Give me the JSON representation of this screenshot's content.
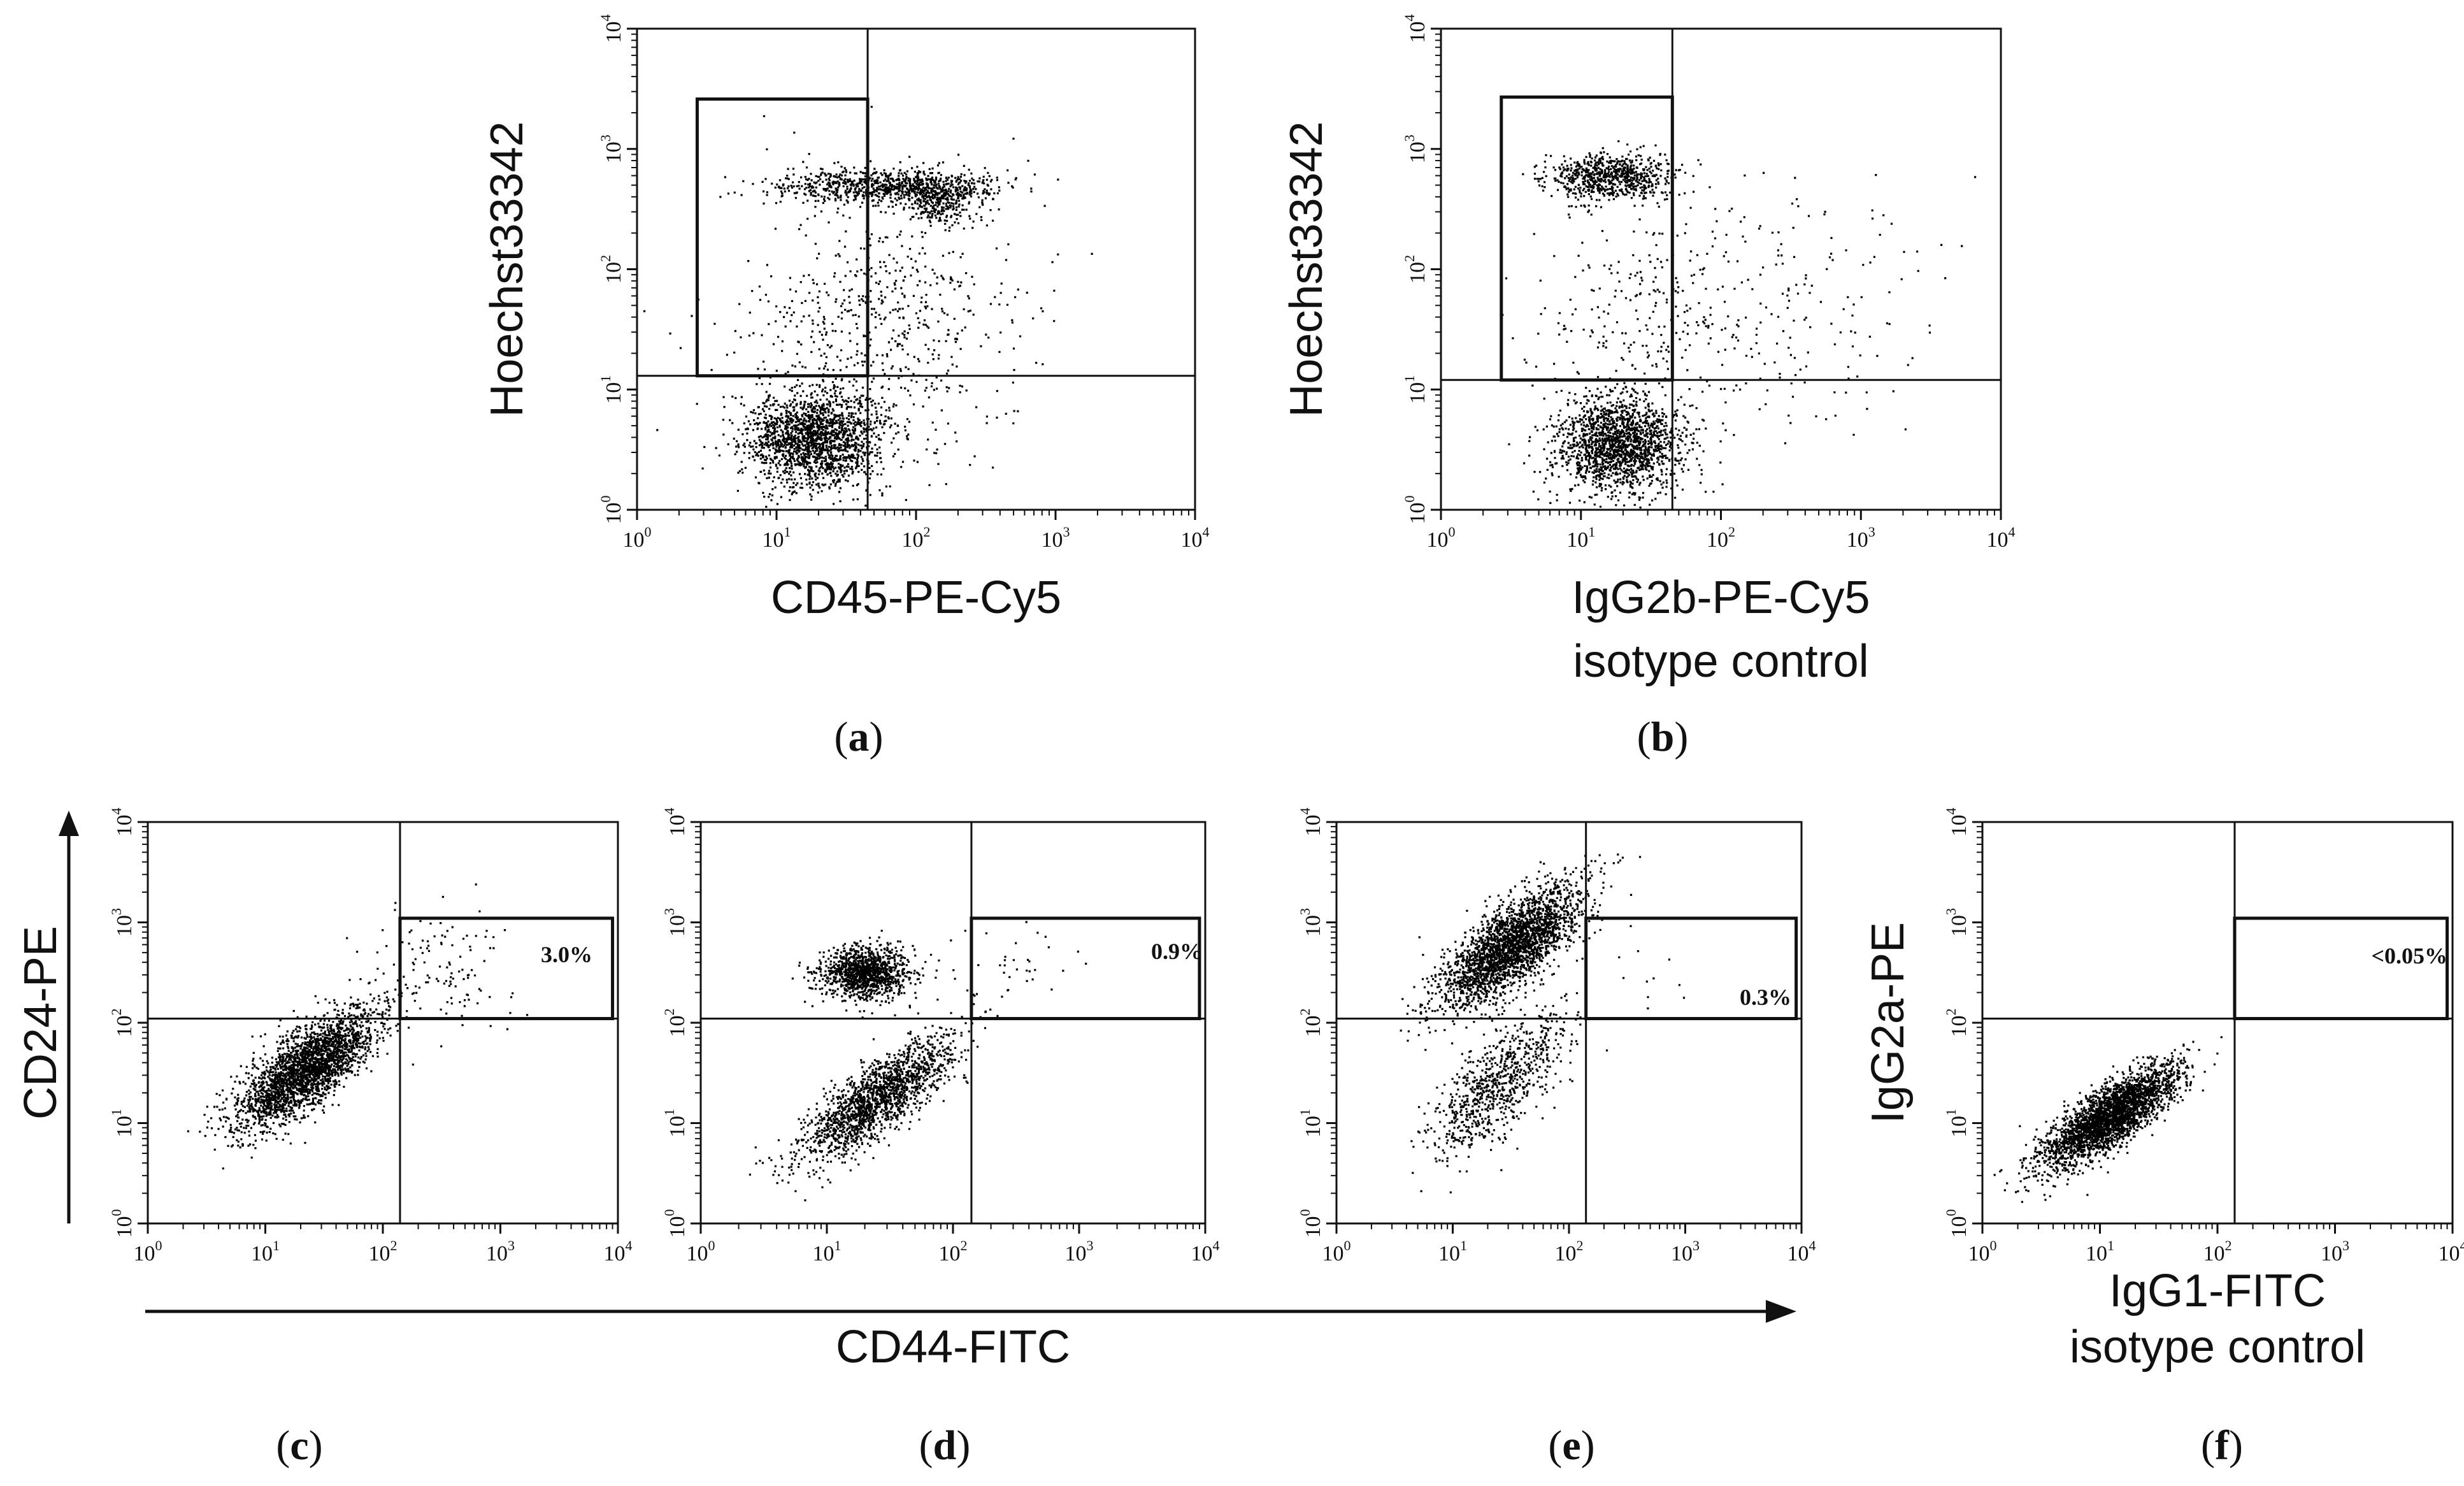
{
  "chart_data": [
    {
      "id": "a",
      "type": "scatter",
      "panel_label": "a",
      "xlabel": "CD45-PE-Cy5",
      "xlabel_line2": "",
      "ylabel": "Hoechst33342",
      "xscale": "log",
      "yscale": "log",
      "xlim": [
        1,
        10000
      ],
      "ylim": [
        1,
        10000
      ],
      "x_ticks": [
        {
          "base": "10",
          "exp": "0"
        },
        {
          "base": "10",
          "exp": "1"
        },
        {
          "base": "10",
          "exp": "2"
        },
        {
          "base": "10",
          "exp": "3"
        },
        {
          "base": "10",
          "exp": "4"
        }
      ],
      "y_ticks": [
        {
          "base": "10",
          "exp": "0"
        },
        {
          "base": "10",
          "exp": "1"
        },
        {
          "base": "10",
          "exp": "2"
        },
        {
          "base": "10",
          "exp": "3"
        },
        {
          "base": "10",
          "exp": "4"
        }
      ],
      "quadrant_divider": {
        "x": 45,
        "y": 13
      },
      "gate": {
        "x": [
          2.7,
          45
        ],
        "y": [
          13,
          2600
        ]
      },
      "gate_label": "",
      "color": "#000000",
      "seed": 11,
      "clusters": [
        {
          "cx": 18,
          "cy": 4,
          "sx": 0.24,
          "sy": 0.2,
          "n": 1800
        },
        {
          "cx": 60,
          "cy": 500,
          "sx": 0.4,
          "sy": 0.07,
          "n": 850
        },
        {
          "cx": 150,
          "cy": 360,
          "sx": 0.13,
          "sy": 0.09,
          "n": 300
        },
        {
          "cx": 55,
          "cy": 35,
          "sx": 0.5,
          "sy": 0.55,
          "n": 650
        }
      ]
    },
    {
      "id": "b",
      "type": "scatter",
      "panel_label": "b",
      "xlabel": "IgG2b-PE-Cy5",
      "xlabel_line2": "isotype control",
      "ylabel": "Hoechst33342",
      "xscale": "log",
      "yscale": "log",
      "xlim": [
        1,
        10000
      ],
      "ylim": [
        1,
        10000
      ],
      "x_ticks": [
        {
          "base": "10",
          "exp": "0"
        },
        {
          "base": "10",
          "exp": "1"
        },
        {
          "base": "10",
          "exp": "2"
        },
        {
          "base": "10",
          "exp": "3"
        },
        {
          "base": "10",
          "exp": "4"
        }
      ],
      "y_ticks": [
        {
          "base": "10",
          "exp": "0"
        },
        {
          "base": "10",
          "exp": "1"
        },
        {
          "base": "10",
          "exp": "2"
        },
        {
          "base": "10",
          "exp": "3"
        },
        {
          "base": "10",
          "exp": "4"
        }
      ],
      "quadrant_divider": {
        "x": 45,
        "y": 12
      },
      "gate": {
        "x": [
          2.7,
          45
        ],
        "y": [
          12,
          2700
        ]
      },
      "gate_label": "",
      "color": "#000000",
      "seed": 23,
      "clusters": [
        {
          "cx": 18,
          "cy": 3.5,
          "sx": 0.22,
          "sy": 0.2,
          "n": 1700
        },
        {
          "cx": 16,
          "cy": 600,
          "sx": 0.22,
          "sy": 0.09,
          "n": 750
        },
        {
          "cx": 30,
          "cy": 40,
          "sx": 0.4,
          "sy": 0.5,
          "n": 250
        },
        {
          "cx": 250,
          "cy": 50,
          "sx": 0.6,
          "sy": 0.55,
          "n": 200
        }
      ]
    },
    {
      "id": "c",
      "type": "scatter",
      "panel_label": "c",
      "xlabel": "",
      "xlabel_line2": "",
      "ylabel": "CD24-PE",
      "xscale": "log",
      "yscale": "log",
      "xlim": [
        1,
        10000
      ],
      "ylim": [
        1,
        10000
      ],
      "x_ticks": [
        {
          "base": "10",
          "exp": "0"
        },
        {
          "base": "10",
          "exp": "1"
        },
        {
          "base": "10",
          "exp": "2"
        },
        {
          "base": "10",
          "exp": "3"
        },
        {
          "base": "10",
          "exp": "4"
        }
      ],
      "y_ticks": [
        {
          "base": "10",
          "exp": "0"
        },
        {
          "base": "10",
          "exp": "1"
        },
        {
          "base": "10",
          "exp": "2"
        },
        {
          "base": "10",
          "exp": "3"
        },
        {
          "base": "10",
          "exp": "4"
        }
      ],
      "quadrant_divider": {
        "x": 140,
        "y": 110
      },
      "gate": {
        "x": [
          140,
          9000
        ],
        "y": [
          110,
          1100
        ]
      },
      "gate_label": "3.0%",
      "color": "#000000",
      "seed": 37,
      "clusters": [
        {
          "cx": 22,
          "cy": 35,
          "sx": 0.3,
          "sy": 0.3,
          "rho": 0.75,
          "n": 2600
        },
        {
          "cx": 300,
          "cy": 350,
          "sx": 0.3,
          "sy": 0.3,
          "n": 120
        }
      ]
    },
    {
      "id": "d",
      "type": "scatter",
      "panel_label": "d",
      "xlabel": "",
      "xlabel_line2": "",
      "ylabel": "",
      "xscale": "log",
      "yscale": "log",
      "xlim": [
        1,
        10000
      ],
      "ylim": [
        1,
        10000
      ],
      "x_ticks": [
        {
          "base": "10",
          "exp": "0"
        },
        {
          "base": "10",
          "exp": "1"
        },
        {
          "base": "10",
          "exp": "2"
        },
        {
          "base": "10",
          "exp": "3"
        },
        {
          "base": "10",
          "exp": "4"
        }
      ],
      "y_ticks": [
        {
          "base": "10",
          "exp": "0"
        },
        {
          "base": "10",
          "exp": "1"
        },
        {
          "base": "10",
          "exp": "2"
        },
        {
          "base": "10",
          "exp": "3"
        },
        {
          "base": "10",
          "exp": "4"
        }
      ],
      "quadrant_divider": {
        "x": 140,
        "y": 110
      },
      "gate": {
        "x": [
          140,
          9000
        ],
        "y": [
          110,
          1100
        ]
      },
      "gate_label": "0.9%",
      "color": "#000000",
      "seed": 53,
      "clusters": [
        {
          "cx": 20,
          "cy": 320,
          "sx": 0.17,
          "sy": 0.13,
          "n": 1200
        },
        {
          "cx": 25,
          "cy": 18,
          "sx": 0.3,
          "sy": 0.3,
          "rho": 0.8,
          "n": 1700
        },
        {
          "cx": 300,
          "cy": 300,
          "sx": 0.3,
          "sy": 0.25,
          "n": 40
        }
      ]
    },
    {
      "id": "e",
      "type": "scatter",
      "panel_label": "e",
      "xlabel": "",
      "xlabel_line2": "",
      "ylabel": "",
      "xscale": "log",
      "yscale": "log",
      "xlim": [
        1,
        10000
      ],
      "ylim": [
        1,
        10000
      ],
      "x_ticks": [
        {
          "base": "10",
          "exp": "0"
        },
        {
          "base": "10",
          "exp": "1"
        },
        {
          "base": "10",
          "exp": "2"
        },
        {
          "base": "10",
          "exp": "3"
        },
        {
          "base": "10",
          "exp": "4"
        }
      ],
      "y_ticks": [
        {
          "base": "10",
          "exp": "0"
        },
        {
          "base": "10",
          "exp": "1"
        },
        {
          "base": "10",
          "exp": "2"
        },
        {
          "base": "10",
          "exp": "3"
        },
        {
          "base": "10",
          "exp": "4"
        }
      ],
      "quadrant_divider": {
        "x": 140,
        "y": 110
      },
      "gate": {
        "x": [
          140,
          9000
        ],
        "y": [
          110,
          1100
        ]
      },
      "gate_label": "0.3%",
      "color": "#000000",
      "seed": 71,
      "clusters": [
        {
          "cx": 32,
          "cy": 600,
          "sx": 0.3,
          "sy": 0.3,
          "rho": 0.75,
          "n": 2600
        },
        {
          "cx": 25,
          "cy": 25,
          "sx": 0.3,
          "sy": 0.35,
          "rho": 0.7,
          "n": 800
        },
        {
          "cx": 300,
          "cy": 300,
          "sx": 0.3,
          "sy": 0.25,
          "n": 15
        }
      ]
    },
    {
      "id": "f",
      "type": "scatter",
      "panel_label": "f",
      "xlabel": "IgG1-FITC",
      "xlabel_line2": "isotype control",
      "ylabel": "IgG2a-PE",
      "xscale": "log",
      "yscale": "log",
      "xlim": [
        1,
        10000
      ],
      "ylim": [
        1,
        10000
      ],
      "x_ticks": [
        {
          "base": "10",
          "exp": "0"
        },
        {
          "base": "10",
          "exp": "1"
        },
        {
          "base": "10",
          "exp": "2"
        },
        {
          "base": "10",
          "exp": "3"
        },
        {
          "base": "10",
          "exp": "4"
        }
      ],
      "y_ticks": [
        {
          "base": "10",
          "exp": "0"
        },
        {
          "base": "10",
          "exp": "1"
        },
        {
          "base": "10",
          "exp": "2"
        },
        {
          "base": "10",
          "exp": "3"
        },
        {
          "base": "10",
          "exp": "4"
        }
      ],
      "quadrant_divider": {
        "x": 140,
        "y": 110
      },
      "gate": {
        "x": [
          140,
          9000
        ],
        "y": [
          110,
          1100
        ]
      },
      "gate_label": "<0.05%",
      "color": "#000000",
      "seed": 89,
      "clusters": [
        {
          "cx": 12,
          "cy": 12,
          "sx": 0.28,
          "sy": 0.25,
          "rho": 0.8,
          "n": 2800
        }
      ]
    }
  ],
  "shared_x_axis_label": "CD44-FITC"
}
